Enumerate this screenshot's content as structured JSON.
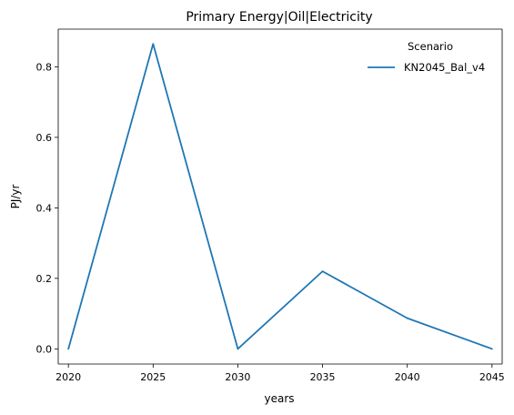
{
  "chart_data": {
    "type": "line",
    "title": "Primary Energy|Oil|Electricity",
    "xlabel": "years",
    "ylabel": "PJ/yr",
    "x": [
      2020,
      2025,
      2030,
      2035,
      2040,
      2045
    ],
    "xticks": [
      "2020",
      "2025",
      "2030",
      "2035",
      "2040",
      "2045"
    ],
    "yticks": [
      "0.0",
      "0.2",
      "0.4",
      "0.6",
      "0.8"
    ],
    "ytick_values": [
      0.0,
      0.2,
      0.4,
      0.6,
      0.8
    ],
    "xlim": [
      2019.4,
      2045.6
    ],
    "ylim": [
      -0.043,
      0.907
    ],
    "grid": false,
    "legend": {
      "title": "Scenario",
      "placement": "top-right"
    },
    "series": [
      {
        "name": "KN2045_Bal_v4",
        "color": "#1f77b4",
        "values": [
          0.0,
          0.865,
          0.0,
          0.22,
          0.087,
          0.0
        ]
      }
    ]
  }
}
